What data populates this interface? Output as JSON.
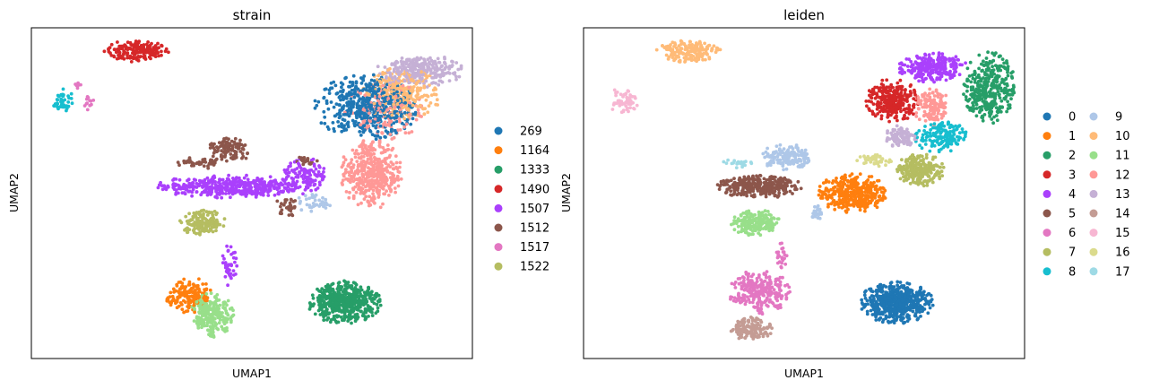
{
  "chart_data": [
    {
      "type": "scatter",
      "title": "strain",
      "xlabel": "UMAP1",
      "ylabel": "UMAP2",
      "xlim": [
        0,
        100
      ],
      "ylim": [
        0,
        100
      ],
      "grid": false,
      "legend": {
        "placement": "right",
        "columns": 1,
        "entries": [
          {
            "label": "269",
            "color": "#1f77b4"
          },
          {
            "label": "1164",
            "color": "#ff7f0e"
          },
          {
            "label": "1333",
            "color": "#279e68"
          },
          {
            "label": "1490",
            "color": "#d62728"
          },
          {
            "label": "1507",
            "color": "#aa40fc"
          },
          {
            "label": "1512",
            "color": "#8c564b"
          },
          {
            "label": "1517",
            "color": "#e377c2"
          },
          {
            "label": "1522",
            "color": "#b5bd61"
          }
        ]
      },
      "extra_colors": {
        "salmon": "#ff9896",
        "light_blue": "#aec7e8",
        "peach": "#ffbb78",
        "lavender": "#c5b0d5",
        "cyan": "#17becf",
        "light_green": "#98df8a"
      },
      "clusters": [
        {
          "color": "#d62728",
          "cx": 24,
          "cy": 93,
          "rx": 7.5,
          "ry": 3.5,
          "n": 170
        },
        {
          "color": "#17becf",
          "cx": 7,
          "cy": 78,
          "rx": 2.5,
          "ry": 4,
          "n": 45
        },
        {
          "color": "#e377c2",
          "cx": 13,
          "cy": 77,
          "rx": 1.2,
          "ry": 2.5,
          "n": 12
        },
        {
          "color": "#e377c2",
          "cx": 10.5,
          "cy": 83,
          "rx": 1,
          "ry": 2,
          "n": 6
        },
        {
          "color": "#1f77b4",
          "cx": 76,
          "cy": 76,
          "rx": 12,
          "ry": 10,
          "n": 480
        },
        {
          "color": "#ffbb78",
          "cx": 84,
          "cy": 80,
          "rx": 9,
          "ry": 8,
          "n": 260
        },
        {
          "color": "#c5b0d5",
          "cx": 88,
          "cy": 87,
          "rx": 10,
          "ry": 5,
          "n": 260
        },
        {
          "color": "#ff9896",
          "cx": 77,
          "cy": 56,
          "rx": 7,
          "ry": 11,
          "n": 420
        },
        {
          "color": "#ff9896",
          "cx": 80,
          "cy": 75,
          "rx": 9,
          "ry": 9,
          "n": 150
        },
        {
          "color": "#aec7e8",
          "cx": 64,
          "cy": 47,
          "rx": 4,
          "ry": 3,
          "n": 40
        },
        {
          "color": "#aa40fc",
          "cx": 45,
          "cy": 52,
          "rx": 17,
          "ry": 3.5,
          "n": 420
        },
        {
          "color": "#aa40fc",
          "cx": 62,
          "cy": 55,
          "rx": 5,
          "ry": 6,
          "n": 120
        },
        {
          "color": "#8c564b",
          "cx": 45,
          "cy": 63,
          "rx": 5,
          "ry": 4,
          "n": 110
        },
        {
          "color": "#8c564b",
          "cx": 38,
          "cy": 59,
          "rx": 6,
          "ry": 2,
          "n": 40
        },
        {
          "color": "#8c564b",
          "cx": 58,
          "cy": 46,
          "rx": 3,
          "ry": 3,
          "n": 30
        },
        {
          "color": "#8c564b",
          "cx": 62,
          "cy": 60,
          "rx": 3,
          "ry": 1.5,
          "n": 20
        },
        {
          "color": "#b5bd61",
          "cx": 39,
          "cy": 41,
          "rx": 5.5,
          "ry": 4,
          "n": 160
        },
        {
          "color": "#aa40fc",
          "cx": 45,
          "cy": 28,
          "rx": 2,
          "ry": 7,
          "n": 40
        },
        {
          "color": "#ff7f0e",
          "cx": 36,
          "cy": 19,
          "rx": 5.5,
          "ry": 5.5,
          "n": 160
        },
        {
          "color": "#98df8a",
          "cx": 41,
          "cy": 13,
          "rx": 5,
          "ry": 7,
          "n": 230
        },
        {
          "color": "#279e68",
          "cx": 71,
          "cy": 17,
          "rx": 8.5,
          "ry": 6.5,
          "n": 540
        }
      ]
    },
    {
      "type": "scatter",
      "title": "leiden",
      "xlabel": "UMAP1",
      "ylabel": "UMAP2",
      "xlim": [
        0,
        100
      ],
      "ylim": [
        0,
        100
      ],
      "grid": false,
      "legend": {
        "placement": "right",
        "columns": 2,
        "entries": [
          {
            "label": "0",
            "color": "#1f77b4"
          },
          {
            "label": "1",
            "color": "#ff7f0e"
          },
          {
            "label": "2",
            "color": "#279e68"
          },
          {
            "label": "3",
            "color": "#d62728"
          },
          {
            "label": "4",
            "color": "#aa40fc"
          },
          {
            "label": "5",
            "color": "#8c564b"
          },
          {
            "label": "6",
            "color": "#e377c2"
          },
          {
            "label": "7",
            "color": "#b5bd61"
          },
          {
            "label": "8",
            "color": "#17becf"
          },
          {
            "label": "9",
            "color": "#aec7e8"
          },
          {
            "label": "10",
            "color": "#ffbb78"
          },
          {
            "label": "11",
            "color": "#98df8a"
          },
          {
            "label": "12",
            "color": "#ff9896"
          },
          {
            "label": "13",
            "color": "#c5b0d5"
          },
          {
            "label": "14",
            "color": "#c49c94"
          },
          {
            "label": "15",
            "color": "#f7b6d2"
          },
          {
            "label": "16",
            "color": "#dbdb8d"
          },
          {
            "label": "17",
            "color": "#9edae5"
          }
        ]
      },
      "clusters": [
        {
          "color": "#ffbb78",
          "cx": 24,
          "cy": 93,
          "rx": 7.5,
          "ry": 3.5,
          "n": 170
        },
        {
          "color": "#f7b6d2",
          "cx": 9,
          "cy": 78,
          "rx": 3.5,
          "ry": 4,
          "n": 55
        },
        {
          "color": "#d62728",
          "cx": 70,
          "cy": 78,
          "rx": 6,
          "ry": 7,
          "n": 280
        },
        {
          "color": "#aa40fc",
          "cx": 79,
          "cy": 88,
          "rx": 8,
          "ry": 4.5,
          "n": 260
        },
        {
          "color": "#279e68",
          "cx": 92,
          "cy": 82,
          "rx": 6,
          "ry": 11,
          "n": 360
        },
        {
          "color": "#ff9896",
          "cx": 79,
          "cy": 76,
          "rx": 4,
          "ry": 6,
          "n": 130
        },
        {
          "color": "#17becf",
          "cx": 81,
          "cy": 67,
          "rx": 6,
          "ry": 5,
          "n": 160
        },
        {
          "color": "#c5b0d5",
          "cx": 72,
          "cy": 67,
          "rx": 3.5,
          "ry": 4,
          "n": 90
        },
        {
          "color": "#b5bd61",
          "cx": 76,
          "cy": 57,
          "rx": 6,
          "ry": 5,
          "n": 230
        },
        {
          "color": "#dbdb8d",
          "cx": 66,
          "cy": 60,
          "rx": 4,
          "ry": 2,
          "n": 40
        },
        {
          "color": "#ff7f0e",
          "cx": 61,
          "cy": 50,
          "rx": 8,
          "ry": 6,
          "n": 380
        },
        {
          "color": "#aec7e8",
          "cx": 46,
          "cy": 61,
          "rx": 6,
          "ry": 4,
          "n": 150
        },
        {
          "color": "#9edae5",
          "cx": 35,
          "cy": 59,
          "rx": 3.5,
          "ry": 1.5,
          "n": 20
        },
        {
          "color": "#8c564b",
          "cx": 40,
          "cy": 52,
          "rx": 10,
          "ry": 3.5,
          "n": 330
        },
        {
          "color": "#aec7e8",
          "cx": 53,
          "cy": 44,
          "rx": 1.5,
          "ry": 2.5,
          "n": 25
        },
        {
          "color": "#98df8a",
          "cx": 39,
          "cy": 41,
          "rx": 6,
          "ry": 4,
          "n": 200
        },
        {
          "color": "#e377c2",
          "cx": 40,
          "cy": 20,
          "rx": 7,
          "ry": 7,
          "n": 260
        },
        {
          "color": "#e377c2",
          "cx": 45,
          "cy": 31,
          "rx": 1.5,
          "ry": 4,
          "n": 25
        },
        {
          "color": "#c49c94",
          "cx": 38,
          "cy": 9,
          "rx": 5,
          "ry": 3.5,
          "n": 140
        },
        {
          "color": "#1f77b4",
          "cx": 71,
          "cy": 17,
          "rx": 8.5,
          "ry": 6.5,
          "n": 540
        }
      ]
    }
  ]
}
